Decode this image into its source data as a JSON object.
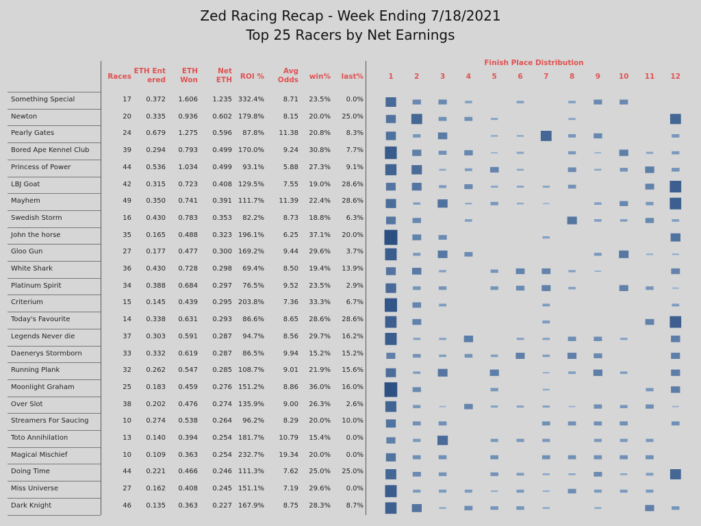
{
  "page": {
    "title_line1": "Zed Racing Recap - Week Ending 7/18/2021",
    "title_line2": "Top 25 Racers by Net Earnings"
  },
  "table": {
    "headers": {
      "races": "Races",
      "eth_entered_1": "ETH Ent",
      "eth_entered_2": "ered",
      "eth_won_1": "ETH",
      "eth_won_2": "Won",
      "net_eth_1": "Net",
      "net_eth_2": "ETH",
      "roi": "ROI %",
      "avg_odds_1": "Avg",
      "avg_odds_2": "Odds",
      "win_pct": "win%",
      "last_pct": "last%"
    },
    "rows": [
      {
        "name": "Something Special",
        "races": "17",
        "eth_entered": "0.372",
        "eth_won": "1.606",
        "net_eth": "1.235",
        "roi": "332.4%",
        "avg_odds": "8.71",
        "win_pct": "23.5%",
        "last_pct": "0.0%"
      },
      {
        "name": "Newton",
        "races": "20",
        "eth_entered": "0.335",
        "eth_won": "0.936",
        "net_eth": "0.602",
        "roi": "179.8%",
        "avg_odds": "8.15",
        "win_pct": "20.0%",
        "last_pct": "25.0%"
      },
      {
        "name": "Pearly Gates",
        "races": "24",
        "eth_entered": "0.679",
        "eth_won": "1.275",
        "net_eth": "0.596",
        "roi": "87.8%",
        "avg_odds": "11.38",
        "win_pct": "20.8%",
        "last_pct": "8.3%"
      },
      {
        "name": "Bored Ape Kennel Club",
        "races": "39",
        "eth_entered": "0.294",
        "eth_won": "0.793",
        "net_eth": "0.499",
        "roi": "170.0%",
        "avg_odds": "9.24",
        "win_pct": "30.8%",
        "last_pct": "7.7%"
      },
      {
        "name": "Princess of Power",
        "races": "44",
        "eth_entered": "0.536",
        "eth_won": "1.034",
        "net_eth": "0.499",
        "roi": "93.1%",
        "avg_odds": "5.88",
        "win_pct": "27.3%",
        "last_pct": "9.1%"
      },
      {
        "name": "LBJ Goat",
        "races": "42",
        "eth_entered": "0.315",
        "eth_won": "0.723",
        "net_eth": "0.408",
        "roi": "129.5%",
        "avg_odds": "7.55",
        "win_pct": "19.0%",
        "last_pct": "28.6%"
      },
      {
        "name": "Mayhem",
        "races": "49",
        "eth_entered": "0.350",
        "eth_won": "0.741",
        "net_eth": "0.391",
        "roi": "111.7%",
        "avg_odds": "11.39",
        "win_pct": "22.4%",
        "last_pct": "28.6%"
      },
      {
        "name": "Swedish Storm",
        "races": "16",
        "eth_entered": "0.430",
        "eth_won": "0.783",
        "net_eth": "0.353",
        "roi": "82.2%",
        "avg_odds": "8.73",
        "win_pct": "18.8%",
        "last_pct": "6.3%"
      },
      {
        "name": "John the horse",
        "races": "35",
        "eth_entered": "0.165",
        "eth_won": "0.488",
        "net_eth": "0.323",
        "roi": "196.1%",
        "avg_odds": "6.25",
        "win_pct": "37.1%",
        "last_pct": "20.0%"
      },
      {
        "name": "Gloo Gun",
        "races": "27",
        "eth_entered": "0.177",
        "eth_won": "0.477",
        "net_eth": "0.300",
        "roi": "169.2%",
        "avg_odds": "9.44",
        "win_pct": "29.6%",
        "last_pct": "3.7%"
      },
      {
        "name": "White Shark",
        "races": "36",
        "eth_entered": "0.430",
        "eth_won": "0.728",
        "net_eth": "0.298",
        "roi": "69.4%",
        "avg_odds": "8.50",
        "win_pct": "19.4%",
        "last_pct": "13.9%"
      },
      {
        "name": "Platinum Spirit",
        "races": "34",
        "eth_entered": "0.388",
        "eth_won": "0.684",
        "net_eth": "0.297",
        "roi": "76.5%",
        "avg_odds": "9.52",
        "win_pct": "23.5%",
        "last_pct": "2.9%"
      },
      {
        "name": "Criterium",
        "races": "15",
        "eth_entered": "0.145",
        "eth_won": "0.439",
        "net_eth": "0.295",
        "roi": "203.8%",
        "avg_odds": "7.36",
        "win_pct": "33.3%",
        "last_pct": "6.7%"
      },
      {
        "name": "Today's Favourite",
        "races": "14",
        "eth_entered": "0.338",
        "eth_won": "0.631",
        "net_eth": "0.293",
        "roi": "86.6%",
        "avg_odds": "8.65",
        "win_pct": "28.6%",
        "last_pct": "28.6%"
      },
      {
        "name": "Legends Never die",
        "races": "37",
        "eth_entered": "0.303",
        "eth_won": "0.591",
        "net_eth": "0.287",
        "roi": "94.7%",
        "avg_odds": "8.56",
        "win_pct": "29.7%",
        "last_pct": "16.2%"
      },
      {
        "name": "Daenerys Stormborn",
        "races": "33",
        "eth_entered": "0.332",
        "eth_won": "0.619",
        "net_eth": "0.287",
        "roi": "86.5%",
        "avg_odds": "9.94",
        "win_pct": "15.2%",
        "last_pct": "15.2%"
      },
      {
        "name": "Running Plank",
        "races": "32",
        "eth_entered": "0.262",
        "eth_won": "0.547",
        "net_eth": "0.285",
        "roi": "108.7%",
        "avg_odds": "9.01",
        "win_pct": "21.9%",
        "last_pct": "15.6%"
      },
      {
        "name": "Moonlight Graham",
        "races": "25",
        "eth_entered": "0.183",
        "eth_won": "0.459",
        "net_eth": "0.276",
        "roi": "151.2%",
        "avg_odds": "8.86",
        "win_pct": "36.0%",
        "last_pct": "16.0%"
      },
      {
        "name": "Over Slot",
        "races": "38",
        "eth_entered": "0.202",
        "eth_won": "0.476",
        "net_eth": "0.274",
        "roi": "135.9%",
        "avg_odds": "9.00",
        "win_pct": "26.3%",
        "last_pct": "2.6%"
      },
      {
        "name": "Streamers For Saucing",
        "races": "10",
        "eth_entered": "0.274",
        "eth_won": "0.538",
        "net_eth": "0.264",
        "roi": "96.2%",
        "avg_odds": "8.29",
        "win_pct": "20.0%",
        "last_pct": "10.0%"
      },
      {
        "name": "Toto Annihilation",
        "races": "13",
        "eth_entered": "0.140",
        "eth_won": "0.394",
        "net_eth": "0.254",
        "roi": "181.7%",
        "avg_odds": "10.79",
        "win_pct": "15.4%",
        "last_pct": "0.0%"
      },
      {
        "name": "Magical Mischief",
        "races": "10",
        "eth_entered": "0.109",
        "eth_won": "0.363",
        "net_eth": "0.254",
        "roi": "232.7%",
        "avg_odds": "19.34",
        "win_pct": "20.0%",
        "last_pct": "0.0%"
      },
      {
        "name": "Doing Time",
        "races": "44",
        "eth_entered": "0.221",
        "eth_won": "0.466",
        "net_eth": "0.246",
        "roi": "111.3%",
        "avg_odds": "7.62",
        "win_pct": "25.0%",
        "last_pct": "25.0%"
      },
      {
        "name": "Miss Universe",
        "races": "27",
        "eth_entered": "0.162",
        "eth_won": "0.408",
        "net_eth": "0.245",
        "roi": "151.1%",
        "avg_odds": "7.19",
        "win_pct": "29.6%",
        "last_pct": "0.0%"
      },
      {
        "name": "Dark Knight",
        "races": "46",
        "eth_entered": "0.135",
        "eth_won": "0.363",
        "net_eth": "0.227",
        "roi": "167.9%",
        "avg_odds": "8.75",
        "win_pct": "28.3%",
        "last_pct": "8.7%"
      }
    ]
  },
  "chart_data": {
    "type": "heatmap",
    "title": "Finish Place Distribution",
    "x": [
      "1",
      "2",
      "3",
      "4",
      "5",
      "6",
      "7",
      "8",
      "9",
      "10",
      "11",
      "12"
    ],
    "y": [
      "Something Special",
      "Newton",
      "Pearly Gates",
      "Bored Ape Kennel Club",
      "Princess of Power",
      "LBJ Goat",
      "Mayhem",
      "Swedish Storm",
      "John the horse",
      "Gloo Gun",
      "White Shark",
      "Platinum Spirit",
      "Criterium",
      "Today's Favourite",
      "Legends Never die",
      "Daenerys Stormborn",
      "Running Plank",
      "Moonlight Graham",
      "Over Slot",
      "Streamers For Saucing",
      "Toto Annihilation",
      "Magical Mischief",
      "Doing Time",
      "Miss Universe",
      "Dark Knight"
    ],
    "values_unit": "share of races finished in place (fraction)",
    "values": [
      [
        0.235,
        0.12,
        0.12,
        0.06,
        0,
        0.06,
        0,
        0.06,
        0.12,
        0.12,
        0,
        0
      ],
      [
        0.2,
        0.25,
        0.1,
        0.1,
        0.05,
        0,
        0,
        0.05,
        0,
        0,
        0,
        0.25
      ],
      [
        0.208,
        0.083,
        0.167,
        0,
        0.042,
        0.042,
        0.25,
        0.083,
        0.125,
        0,
        0,
        0.083
      ],
      [
        0.308,
        0.154,
        0.1,
        0.128,
        0.026,
        0.051,
        0,
        0.077,
        0.026,
        0.154,
        0.051,
        0.077
      ],
      [
        0.273,
        0.227,
        0.045,
        0.068,
        0.136,
        0.045,
        0,
        0.114,
        0.045,
        0.091,
        0.159,
        0.091
      ],
      [
        0.19,
        0.19,
        0.07,
        0.119,
        0.048,
        0.048,
        0.048,
        0.095,
        0,
        0,
        0.143,
        0.286
      ],
      [
        0.224,
        0.061,
        0.204,
        0.041,
        0.082,
        0.041,
        0.02,
        0,
        0.061,
        0.122,
        0.082,
        0.286
      ],
      [
        0.188,
        0.125,
        0,
        0.063,
        0,
        0,
        0,
        0.188,
        0.063,
        0.063,
        0.125,
        0.063
      ],
      [
        0.371,
        0.143,
        0.114,
        0,
        0,
        0,
        0.057,
        0,
        0,
        0,
        0,
        0.2
      ],
      [
        0.296,
        0.074,
        0.185,
        0.111,
        0,
        0,
        0,
        0,
        0.074,
        0.185,
        0.037,
        0.037
      ],
      [
        0.194,
        0.167,
        0.056,
        0,
        0.083,
        0.139,
        0.139,
        0.056,
        0.028,
        0,
        0,
        0.139
      ],
      [
        0.235,
        0.088,
        0.088,
        0,
        0.088,
        0.118,
        0.147,
        0.059,
        0,
        0.147,
        0.088,
        0.029
      ],
      [
        0.333,
        0.133,
        0.067,
        0,
        0,
        0,
        0.067,
        0,
        0,
        0,
        0,
        0.067
      ],
      [
        0.286,
        0.143,
        0,
        0,
        0,
        0,
        0.071,
        0,
        0,
        0,
        0.143,
        0.286
      ],
      [
        0.297,
        0.054,
        0.054,
        0.162,
        0,
        0.054,
        0.054,
        0.108,
        0.108,
        0.054,
        0,
        0.162
      ],
      [
        0.152,
        0.091,
        0.061,
        0.091,
        0.061,
        0.152,
        0.061,
        0.152,
        0.121,
        0,
        0,
        0.152
      ],
      [
        0.219,
        0.063,
        0.188,
        0,
        0.156,
        0,
        0.031,
        0.063,
        0.156,
        0.063,
        0,
        0.156
      ],
      [
        0.36,
        0.12,
        0,
        0,
        0.08,
        0,
        0.04,
        0,
        0,
        0,
        0.08,
        0.16
      ],
      [
        0.263,
        0.079,
        0.026,
        0.132,
        0.053,
        0.053,
        0.053,
        0.026,
        0.105,
        0.079,
        0.105,
        0.026
      ],
      [
        0.2,
        0.1,
        0.1,
        0,
        0,
        0,
        0.1,
        0.1,
        0.1,
        0.1,
        0,
        0.1
      ],
      [
        0.154,
        0.077,
        0.231,
        0,
        0.077,
        0.077,
        0.077,
        0,
        0.077,
        0.077,
        0.077,
        0
      ],
      [
        0.2,
        0.1,
        0.1,
        0,
        0.1,
        0,
        0.1,
        0.1,
        0.1,
        0.1,
        0.1,
        0
      ],
      [
        0.25,
        0.114,
        0.091,
        0,
        0.091,
        0.068,
        0.045,
        0.045,
        0.114,
        0.045,
        0.068,
        0.25
      ],
      [
        0.296,
        0.074,
        0.074,
        0.074,
        0.037,
        0.074,
        0.037,
        0.111,
        0.074,
        0.074,
        0.074,
        0
      ],
      [
        0.283,
        0.196,
        0.043,
        0.109,
        0.087,
        0.087,
        0.043,
        0,
        0.043,
        0,
        0.152,
        0.087
      ]
    ]
  },
  "colors": {
    "header_text": "#e05252",
    "cell_low": "#b9d6ee",
    "cell_high": "#2c4f82"
  }
}
